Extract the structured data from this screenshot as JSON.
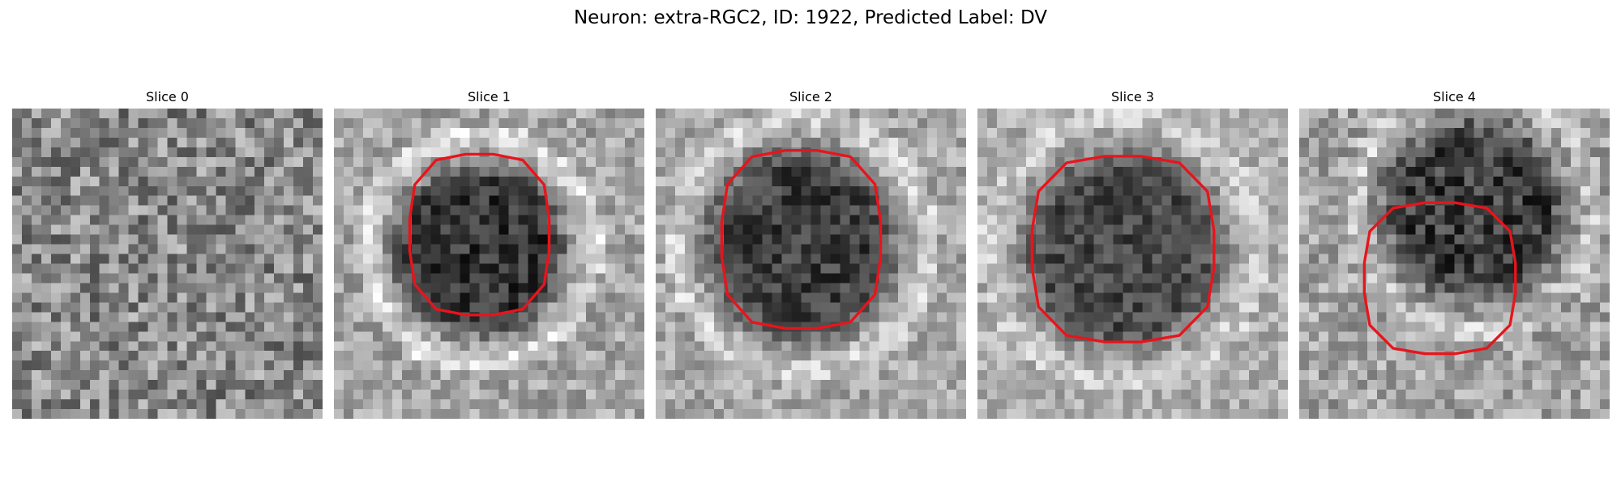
{
  "figure": {
    "title": "Neuron: extra-RGC2, ID: 1922, Predicted Label: DV"
  },
  "panels": [
    {
      "title": "Slice 0",
      "has_outline": false,
      "colormap": "gray",
      "outline_color": "#e8141c"
    },
    {
      "title": "Slice 1",
      "has_outline": true,
      "colormap": "gray",
      "outline_color": "#e8141c"
    },
    {
      "title": "Slice 2",
      "has_outline": true,
      "colormap": "gray",
      "outline_color": "#e8141c"
    },
    {
      "title": "Slice 3",
      "has_outline": true,
      "colormap": "gray",
      "outline_color": "#e8141c"
    },
    {
      "title": "Slice 4",
      "has_outline": true,
      "colormap": "gray",
      "outline_color": "#e8141c"
    }
  ]
}
